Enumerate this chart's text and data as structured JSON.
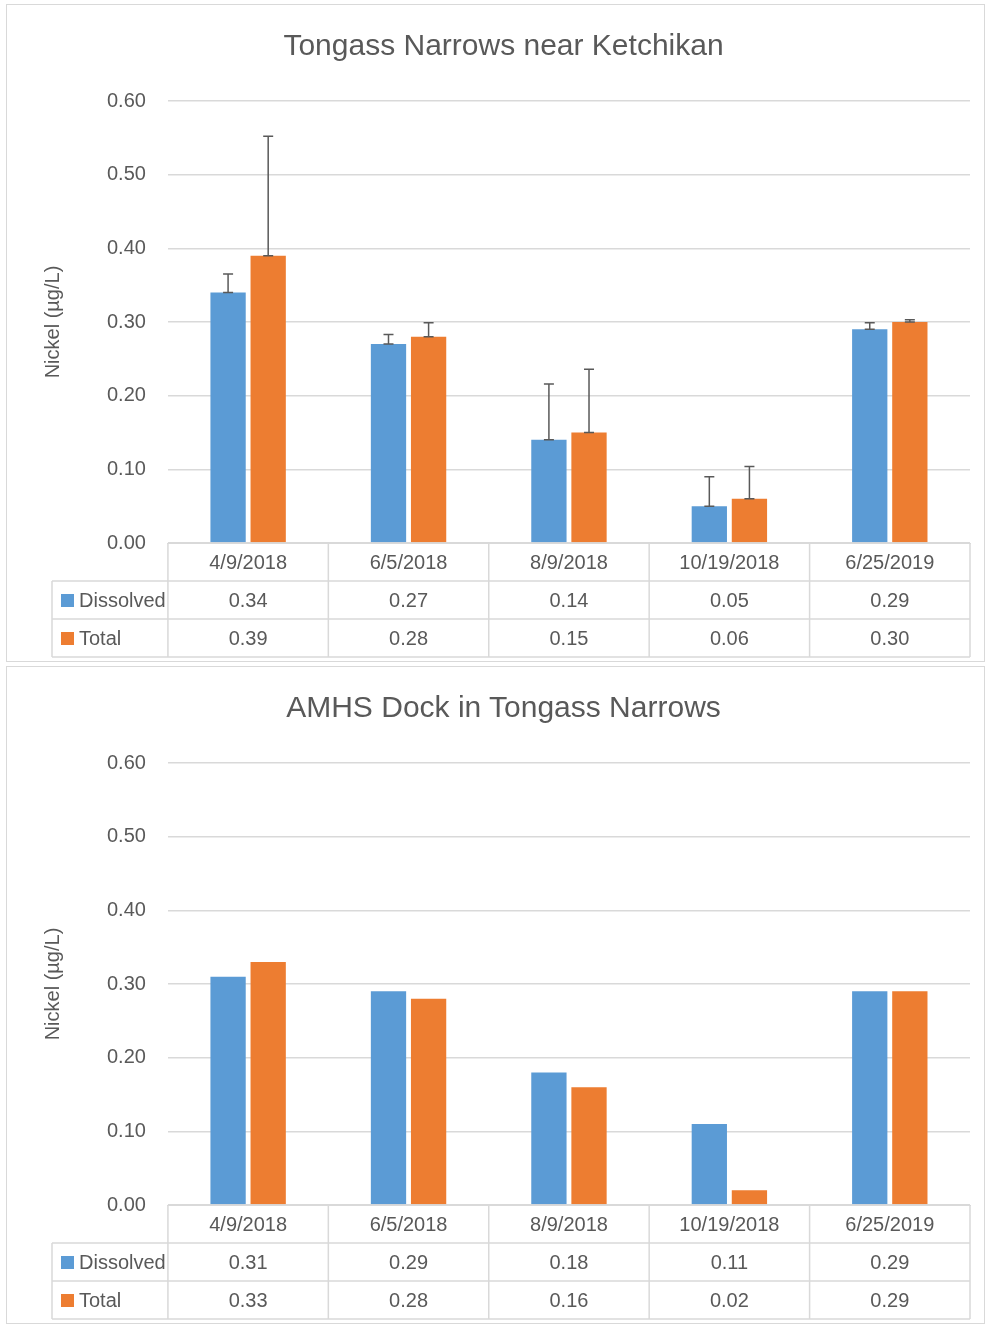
{
  "chart_data": [
    {
      "type": "bar",
      "title": "Tongass Narrows near Ketchikan",
      "ylabel": "Nickel (µg/L)",
      "categories": [
        "4/9/2018",
        "6/5/2018",
        "8/9/2018",
        "10/19/2018",
        "6/25/2019"
      ],
      "series": [
        {
          "name": "Dissolved",
          "color": "#5b9bd5",
          "values": [
            0.34,
            0.27,
            0.14,
            0.05,
            0.29
          ],
          "value_labels": [
            "0.34",
            "0.27",
            "0.14",
            "0.05",
            "0.29"
          ],
          "errors": [
            [
              0.34,
              0.365
            ],
            [
              0.27,
              0.283
            ],
            [
              0.14,
              0.216
            ],
            [
              0.05,
              0.09
            ],
            [
              0.29,
              0.299
            ]
          ]
        },
        {
          "name": "Total",
          "color": "#ed7d31",
          "values": [
            0.39,
            0.28,
            0.15,
            0.06,
            0.3
          ],
          "value_labels": [
            "0.39",
            "0.28",
            "0.15",
            "0.06",
            "0.30"
          ],
          "errors": [
            [
              0.39,
              0.552
            ],
            [
              0.28,
              0.299
            ],
            [
              0.15,
              0.236
            ],
            [
              0.06,
              0.104
            ],
            [
              0.3,
              0.303
            ]
          ]
        }
      ],
      "ylim": [
        0,
        0.6
      ],
      "yticks": [
        {
          "value": 0,
          "label": "0.00"
        },
        {
          "value": 0.1,
          "label": "0.10"
        },
        {
          "value": 0.2,
          "label": "0.20"
        },
        {
          "value": 0.3,
          "label": "0.30"
        },
        {
          "value": 0.4,
          "label": "0.40"
        },
        {
          "value": 0.5,
          "label": "0.50"
        },
        {
          "value": 0.6,
          "label": "0.60"
        }
      ],
      "grid": "y",
      "legend": "bottom"
    },
    {
      "type": "bar",
      "title": "AMHS Dock in Tongass Narrows",
      "ylabel": "Nickel (µg/L)",
      "categories": [
        "4/9/2018",
        "6/5/2018",
        "8/9/2018",
        "10/19/2018",
        "6/25/2019"
      ],
      "series": [
        {
          "name": "Dissolved",
          "color": "#5b9bd5",
          "values": [
            0.31,
            0.29,
            0.18,
            0.11,
            0.29
          ],
          "value_labels": [
            "0.31",
            "0.29",
            "0.18",
            "0.11",
            "0.29"
          ]
        },
        {
          "name": "Total",
          "color": "#ed7d31",
          "values": [
            0.33,
            0.28,
            0.16,
            0.02,
            0.29
          ],
          "value_labels": [
            "0.33",
            "0.28",
            "0.16",
            "0.02",
            "0.29"
          ]
        }
      ],
      "ylim": [
        0,
        0.6
      ],
      "yticks": [
        {
          "value": 0,
          "label": "0.00"
        },
        {
          "value": 0.1,
          "label": "0.10"
        },
        {
          "value": 0.2,
          "label": "0.20"
        },
        {
          "value": 0.3,
          "label": "0.30"
        },
        {
          "value": 0.4,
          "label": "0.40"
        },
        {
          "value": 0.5,
          "label": "0.50"
        },
        {
          "value": 0.6,
          "label": "0.60"
        }
      ],
      "grid": "y",
      "legend": "bottom"
    }
  ]
}
